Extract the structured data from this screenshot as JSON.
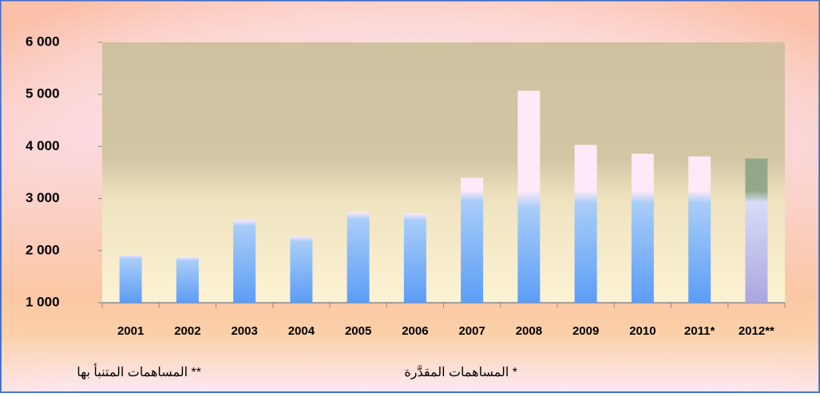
{
  "chart_data": {
    "type": "bar",
    "categories": [
      "2001",
      "2002",
      "2003",
      "2004",
      "2005",
      "2006",
      "2007",
      "2008",
      "2009",
      "2010",
      "2011*",
      "2012**"
    ],
    "values": [
      1920,
      1880,
      2600,
      2280,
      2740,
      2720,
      3400,
      5070,
      4030,
      3860,
      3810,
      3770
    ],
    "colors": [
      "#fde9f7",
      "#fde9f7",
      "#fde9f7",
      "#fde9f7",
      "#fde9f7",
      "#fde9f7",
      "#fde9f7",
      "#fde9f7",
      "#fde9f7",
      "#fde9f7",
      "#fde9f7",
      "#93a88a"
    ],
    "ylim": [
      1000,
      6000
    ],
    "yticks": [
      {
        "value": 1000,
        "label": "1 000"
      },
      {
        "value": 2000,
        "label": "2 000"
      },
      {
        "value": 3000,
        "label": "3 000"
      },
      {
        "value": 4000,
        "label": "4 000"
      },
      {
        "value": 5000,
        "label": "5 000"
      },
      {
        "value": 6000,
        "label": "6 000"
      }
    ],
    "grid": false,
    "footnotes": [
      "** المساهمات المتنبأ بها",
      "* المساهمات المقدَّرة"
    ]
  }
}
